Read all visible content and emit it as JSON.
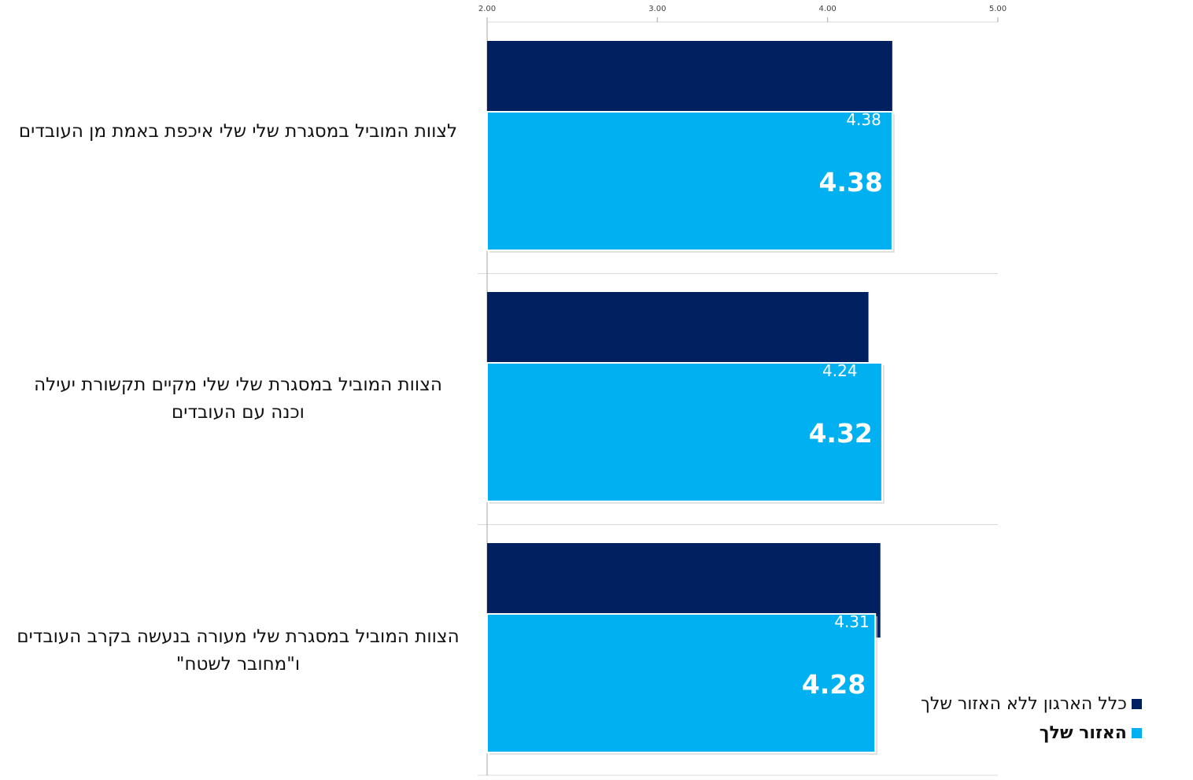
{
  "chart_data": {
    "type": "bar",
    "orientation": "horizontal",
    "categories": [
      "לצוות המוביל במסגרת שלי שלי איכפת באמת מן העובדים",
      "הצוות המוביל במסגרת שלי שלי מקיים תקשורת יעילה וכנה עם העובדים",
      "הצוות המוביל במסגרת שלי מעורה בנעשה בקרב העובדים ו\"מחובר  לשטח\""
    ],
    "series": [
      {
        "name": "כלל הארגון ללא האזור שלך",
        "values": [
          4.38,
          4.24,
          4.31
        ],
        "labels": [
          "4.38",
          "4.24",
          "4.31"
        ],
        "color": "#002060"
      },
      {
        "name": "האזור שלך",
        "values": [
          4.38,
          4.32,
          4.28
        ],
        "labels": [
          "4.38",
          "4.32",
          "4.28"
        ],
        "color": "#00B0F0"
      }
    ],
    "xlim": [
      2,
      5
    ],
    "ticks": [
      2,
      3,
      4,
      5
    ],
    "tick_labels": [
      "2.00",
      "3.00",
      "4.00",
      "5.00"
    ],
    "axis_position": "top",
    "grid": true,
    "legend_position": "bottom-right"
  }
}
